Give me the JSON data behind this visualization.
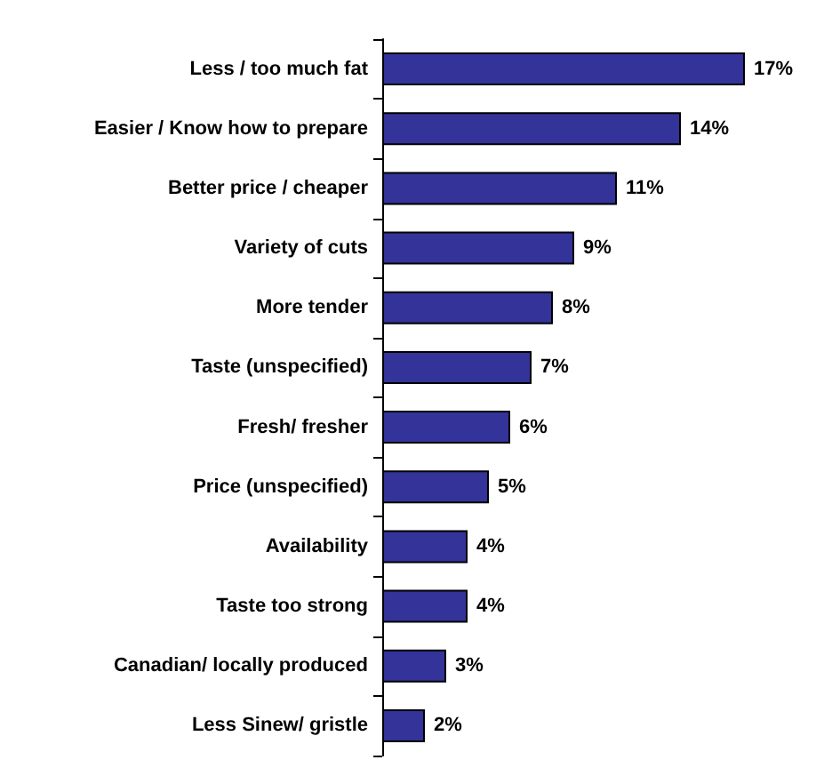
{
  "chart_data": {
    "type": "bar",
    "orientation": "horizontal",
    "categories": [
      "Less / too much fat",
      "Easier / Know how to prepare",
      "Better price / cheaper",
      "Variety of cuts",
      "More tender",
      "Taste (unspecified)",
      "Fresh/ fresher",
      "Price (unspecified)",
      "Availability",
      "Taste too strong",
      "Canadian/ locally produced",
      "Less Sinew/ gristle"
    ],
    "values": [
      17,
      14,
      11,
      9,
      8,
      7,
      6,
      5,
      4,
      4,
      3,
      2
    ],
    "value_labels": [
      "17%",
      "14%",
      "11%",
      "9%",
      "8%",
      "7%",
      "6%",
      "5%",
      "4%",
      "4%",
      "3%",
      "2%"
    ],
    "color": "#333399"
  }
}
